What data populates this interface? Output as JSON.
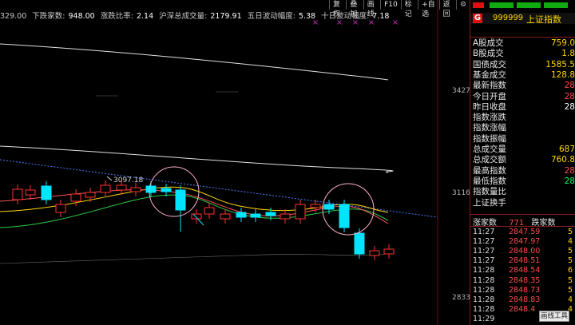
{
  "stats": {
    "prefix": "329.00",
    "down_label": "下跌家数:",
    "down_value": "948.00",
    "ratio_label": "涨跌比率:",
    "ratio_value": "2.14",
    "volume_label": "沪深总成交量:",
    "volume_value": "2179.91",
    "fiveday_label": "五日波动幅度:",
    "fiveday_value": "5.38",
    "tenday_label": "十日波动幅度:",
    "tenday_value": "7.18"
  },
  "toolbar": {
    "buttons": [
      "复权",
      "叠加",
      "画线",
      "F10",
      "标记",
      "+自选",
      "返回"
    ],
    "icon": "settings-icon"
  },
  "chart": {
    "price_labels": [
      "3427",
      "3116",
      "2833"
    ],
    "annotation": "3097.18",
    "colors": {
      "up": "#ff3232",
      "down": "#00e5ff",
      "ma_white": "#e0e0e0",
      "ma_yellow": "#ffd700",
      "ma_green": "#2ecc40",
      "trend": "#4f7fff",
      "circle": "#ffb0d0"
    }
  },
  "right_header": {
    "badge": "G",
    "code": "999999",
    "name": "上证指数"
  },
  "info": [
    {
      "label": "A股成交",
      "value": "759.0",
      "color": "#ffd700"
    },
    {
      "label": "B股成交",
      "value": "1.8",
      "color": "#ffd700"
    },
    {
      "label": "国债成交",
      "value": "1585.5",
      "color": "#ffd700"
    },
    {
      "label": "基金成交",
      "value": "128.8",
      "color": "#ffd700"
    },
    {
      "label": "最新指数",
      "value": "28",
      "color": "#ff4a4a"
    },
    {
      "label": "今日开盘",
      "value": "28",
      "color": "#ff4a4a"
    },
    {
      "label": "昨日收盘",
      "value": "28",
      "color": "#ffffff"
    },
    {
      "label": "指数涨跌",
      "value": "",
      "color": "#ff4a4a"
    },
    {
      "label": "指数涨幅",
      "value": "",
      "color": "#ff4a4a"
    },
    {
      "label": "指数振幅",
      "value": "",
      "color": "#ff4a4a"
    },
    {
      "label": "总成交量",
      "value": "687",
      "color": "#ffd700"
    },
    {
      "label": "总成交额",
      "value": "760.8",
      "color": "#ffd700"
    },
    {
      "label": "最高指数",
      "value": "28",
      "color": "#ff4a4a"
    },
    {
      "label": "最低指数",
      "value": "28",
      "color": "#00ff66"
    },
    {
      "label": "指数量比",
      "value": "",
      "color": "#ffd700"
    },
    {
      "label": "上证换手",
      "value": "",
      "color": "#ffd700"
    }
  ],
  "advance_decline": {
    "up_label": "涨家数",
    "up_value": "771",
    "down_label": "跌家数"
  },
  "ticks": [
    {
      "time": "11:27",
      "price": "2847.59",
      "qty": "5"
    },
    {
      "time": "11:27",
      "price": "2847.97",
      "qty": "4"
    },
    {
      "time": "11:27",
      "price": "2848.00",
      "qty": "5"
    },
    {
      "time": "11:27",
      "price": "2848.51",
      "qty": "5"
    },
    {
      "time": "11:28",
      "price": "2848.54",
      "qty": "6"
    },
    {
      "time": "11:28",
      "price": "2848.35",
      "qty": "5"
    },
    {
      "time": "11:28",
      "price": "2848.73",
      "qty": "5"
    },
    {
      "time": "11:28",
      "price": "2848.83",
      "qty": "4"
    },
    {
      "time": "11:28",
      "price": "2848.4",
      "qty": "4"
    },
    {
      "time": "11:29",
      "price": "",
      "qty": ""
    }
  ],
  "draw_tool": "画线工具"
}
